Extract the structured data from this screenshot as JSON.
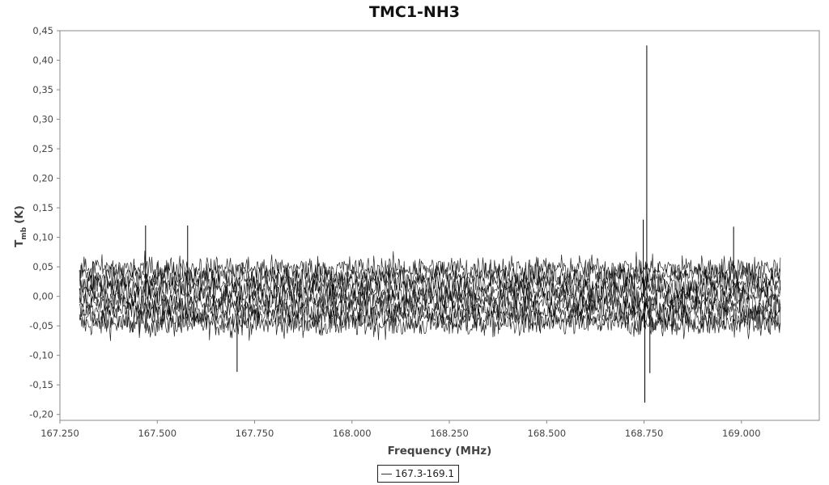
{
  "chart_data": {
    "type": "line",
    "title": "TMC1-NH3",
    "xlabel": "Frequency (MHz)",
    "ylabel_main": "T",
    "ylabel_sub": "mb",
    "ylabel_unit": "(K)",
    "xlim": [
      167.25,
      169.2
    ],
    "ylim": [
      -0.21,
      0.45
    ],
    "x_ticks": [
      167.25,
      167.5,
      167.75,
      168.0,
      168.25,
      168.5,
      168.75,
      169.0
    ],
    "x_tick_labels": [
      "167.250",
      "167.500",
      "167.750",
      "168.000",
      "168.250",
      "168.500",
      "168.750",
      "169.000"
    ],
    "y_ticks": [
      -0.2,
      -0.15,
      -0.1,
      -0.05,
      0.0,
      0.05,
      0.1,
      0.15,
      0.2,
      0.25,
      0.3,
      0.35,
      0.4,
      0.45
    ],
    "y_tick_labels": [
      "-0,20",
      "-0,15",
      "-0,10",
      "-0,05",
      "0,00",
      "0,05",
      "0,10",
      "0,15",
      "0,20",
      "0,25",
      "0,30",
      "0,35",
      "0,40",
      "0,45"
    ],
    "grid": false,
    "legend_position": "bottom-center",
    "series": [
      {
        "name": "167.3-169.1",
        "color": "#000000",
        "x_range": [
          167.3,
          169.1
        ],
        "noise_band": [
          -0.07,
          0.07
        ],
        "spikes": [
          {
            "x": 168.757,
            "y": 0.425
          },
          {
            "x": 168.752,
            "y": -0.18
          },
          {
            "x": 168.748,
            "y": 0.13
          },
          {
            "x": 168.765,
            "y": -0.13
          },
          {
            "x": 167.47,
            "y": 0.12
          },
          {
            "x": 167.578,
            "y": 0.12
          },
          {
            "x": 167.705,
            "y": -0.128
          },
          {
            "x": 168.98,
            "y": 0.118
          }
        ]
      }
    ]
  },
  "legend": {
    "entries": [
      "167.3-169.1"
    ]
  }
}
